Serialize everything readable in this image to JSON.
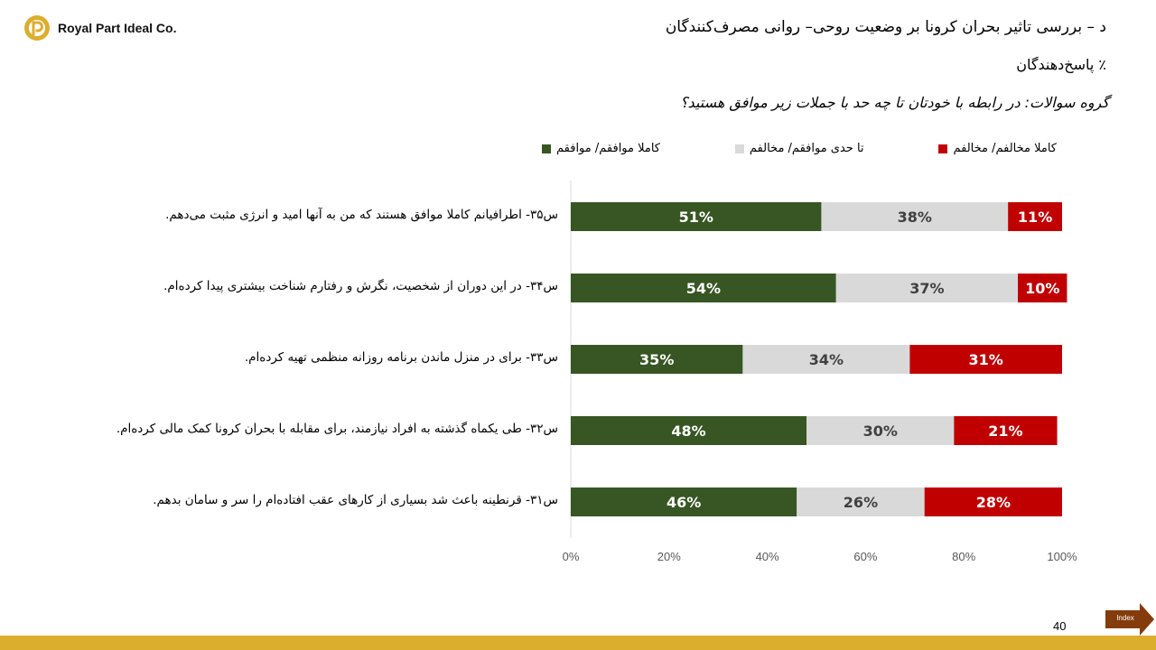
{
  "header": {
    "company": "Royal Part Ideal Co.",
    "title": "د – بررسی تاثیر بحران کرونا بر وضعیت روحی– روانی مصرف‌کنندگان",
    "subtitle": "٪ پاسخ‌دهندگان",
    "question": "گروه سوالات: در رابطه با خودتان تا چه حد با جملات زیر موافق هستید؟"
  },
  "legend": {
    "agree": "کاملا موافقم/ موافقم",
    "neutral": "تا حدی موافقم/ مخالفم",
    "disagree": "کاملا مخالفم/ مخالفم"
  },
  "colors": {
    "agree": "#375623",
    "neutral": "#d9d9d9",
    "disagree": "#c00000",
    "footer": "#dcae2e",
    "index": "#843c0c"
  },
  "chart_data": {
    "type": "bar",
    "orientation": "horizontal",
    "stacked": "100%",
    "categories": [
      "س۳۵- اطرافیانم کاملا موافق هستند که من به آنها امید و انرژی مثبت می‌دهم.",
      "س۳۴- در این دوران از شخصیت، نگرش و رفتارم شناخت بیشتری پیدا کرده‌ام.",
      "س۳۳- برای در منزل ماندن برنامه روزانه منظمی تهیه کرده‌ام.",
      "س۳۲- طی یکماه گذشته به افراد نیازمند، برای مقابله با بحران کرونا کمک مالی کرده‌ام.",
      "س۳۱- قرنطینه باعث شد بسیاری از کارهای عقب افتاده‌ام را سر و سامان بدهم."
    ],
    "series": [
      {
        "name": "کاملا موافقم/ موافقم",
        "values": [
          51,
          54,
          35,
          48,
          46
        ],
        "labels": [
          "51%",
          "54%",
          "35%",
          "48%",
          "46%"
        ]
      },
      {
        "name": "تا حدی موافقم/ مخالفم",
        "values": [
          38,
          37,
          34,
          30,
          26
        ],
        "labels": [
          "38%",
          "37%",
          "34%",
          "30%",
          "26%"
        ]
      },
      {
        "name": "کاملا مخالفم/ مخالفم",
        "values": [
          11,
          10,
          31,
          21,
          28
        ],
        "labels": [
          "11%",
          "10%",
          "31%",
          "21%",
          "28%"
        ]
      }
    ],
    "xticks": [
      "0%",
      "20%",
      "40%",
      "60%",
      "80%",
      "100%"
    ],
    "xlim": [
      0,
      100
    ],
    "legend_position": "top"
  },
  "footer": {
    "page_number": "40",
    "index_label": "Index"
  }
}
